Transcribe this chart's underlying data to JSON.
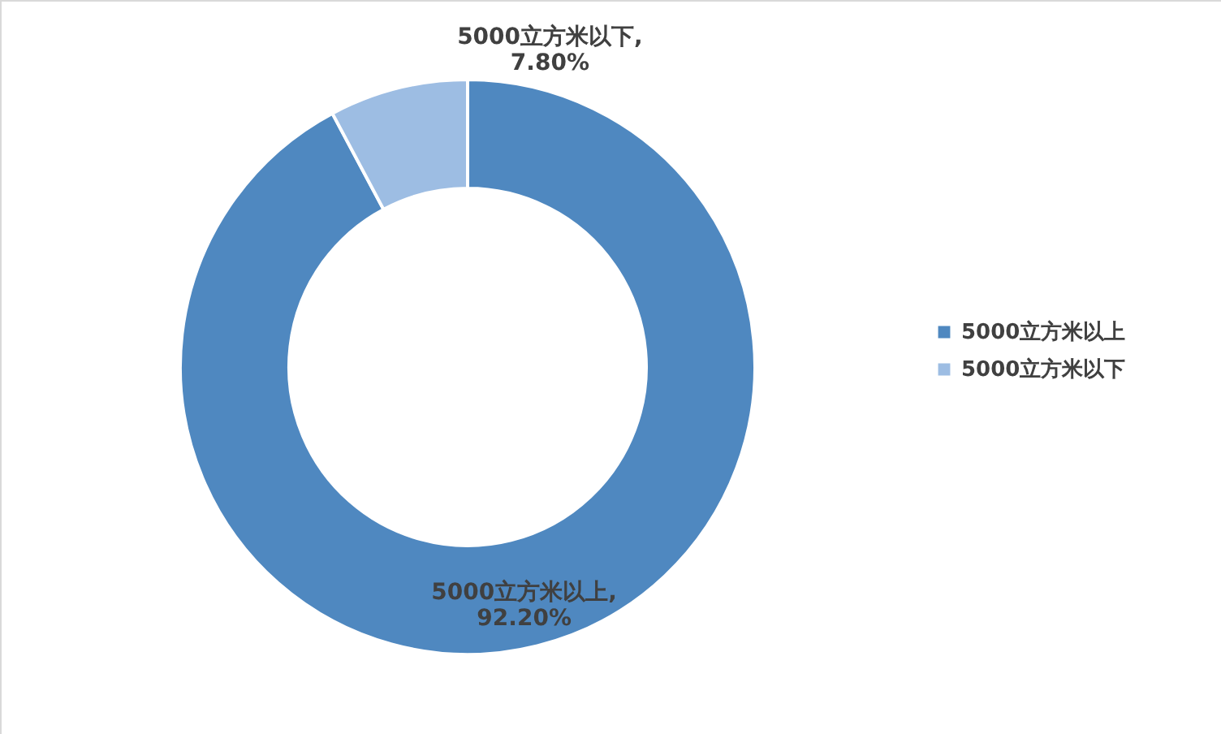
{
  "chart_data": {
    "type": "donut",
    "categories": [
      "5000立方米以上",
      "5000立方米以下"
    ],
    "values": [
      92.2,
      7.8
    ],
    "colors": [
      "#4f88c0",
      "#9dbde3"
    ],
    "value_labels": [
      "5000立方米以上,\n92.20%",
      "5000立方米以下,\n7.80%"
    ],
    "legend": "right"
  }
}
